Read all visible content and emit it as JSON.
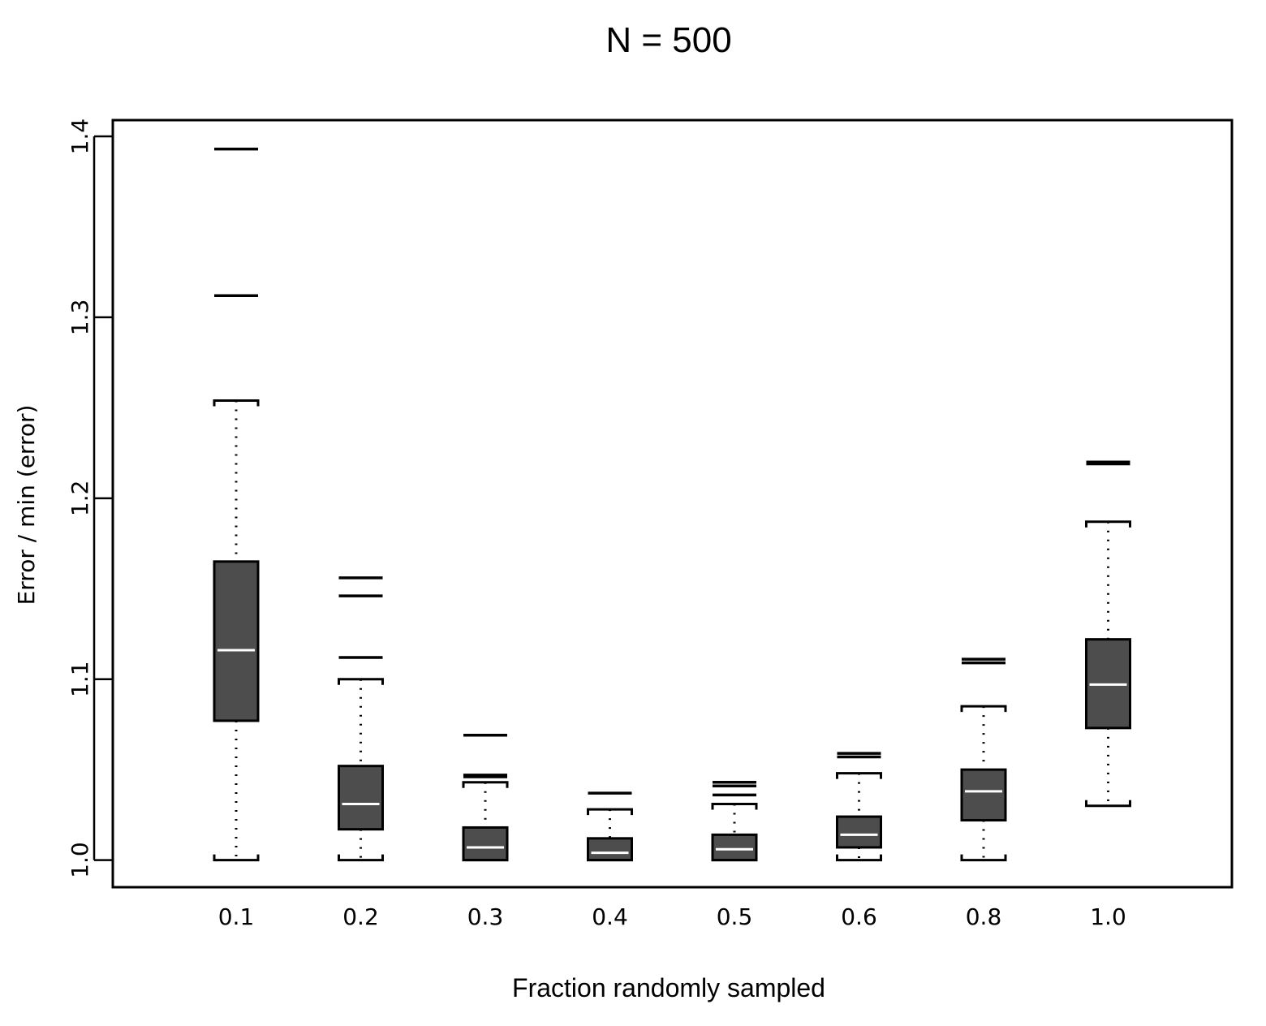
{
  "chart_data": {
    "type": "boxplot",
    "title": "N = 500",
    "xlabel": "Fraction randomly sampled",
    "ylabel": "Error / min (error)",
    "categories": [
      "0.1",
      "0.2",
      "0.3",
      "0.4",
      "0.5",
      "0.6",
      "0.8",
      "1.0"
    ],
    "ylim": [
      0.985,
      1.409
    ],
    "yticks": [
      1.0,
      1.1,
      1.2,
      1.3,
      1.4
    ],
    "ytick_labels": [
      "1.0",
      "1.1",
      "1.2",
      "1.3",
      "1.4"
    ],
    "box_color": "#4d4d4d",
    "median_color": "#ffffff",
    "grid": false,
    "boxes": [
      {
        "whisker_low": 1.0,
        "q1": 1.077,
        "median": 1.116,
        "q3": 1.165,
        "whisker_high": 1.254,
        "outliers": [
          1.312,
          1.393
        ]
      },
      {
        "whisker_low": 1.0,
        "q1": 1.017,
        "median": 1.031,
        "q3": 1.052,
        "whisker_high": 1.1,
        "outliers": [
          1.112,
          1.146,
          1.156
        ]
      },
      {
        "whisker_low": 1.0,
        "q1": 1.0,
        "median": 1.007,
        "q3": 1.018,
        "whisker_high": 1.043,
        "outliers": [
          1.046,
          1.047,
          1.069
        ]
      },
      {
        "whisker_low": 1.0,
        "q1": 1.0,
        "median": 1.004,
        "q3": 1.012,
        "whisker_high": 1.028,
        "outliers": [
          1.037
        ]
      },
      {
        "whisker_low": 1.0,
        "q1": 1.0,
        "median": 1.006,
        "q3": 1.014,
        "whisker_high": 1.031,
        "outliers": [
          1.036,
          1.041,
          1.043
        ]
      },
      {
        "whisker_low": 1.0,
        "q1": 1.007,
        "median": 1.014,
        "q3": 1.024,
        "whisker_high": 1.048,
        "outliers": [
          1.057,
          1.059
        ]
      },
      {
        "whisker_low": 1.0,
        "q1": 1.022,
        "median": 1.038,
        "q3": 1.05,
        "whisker_high": 1.085,
        "outliers": [
          1.109,
          1.111
        ]
      },
      {
        "whisker_low": 1.03,
        "q1": 1.073,
        "median": 1.097,
        "q3": 1.122,
        "whisker_high": 1.187,
        "outliers": [
          1.219,
          1.22
        ]
      }
    ]
  }
}
